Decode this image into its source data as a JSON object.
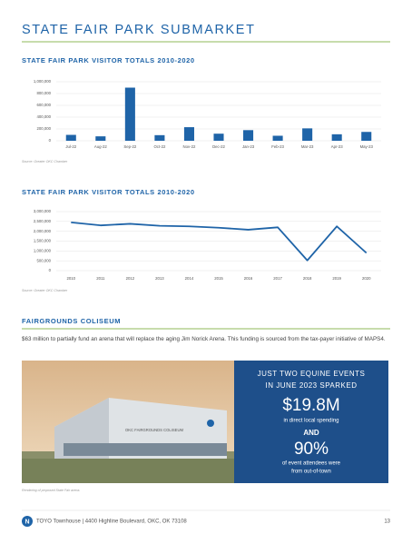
{
  "title": "STATE FAIR PARK SUBMARKET",
  "chart_data": [
    {
      "type": "bar",
      "title": "STATE FAIR PARK VISITOR TOTALS 2010-2020",
      "categories": [
        "Jul-22",
        "Aug-22",
        "Sep-22",
        "Oct-22",
        "Nov-22",
        "Dec-22",
        "Jan-23",
        "Feb-23",
        "Mar-23",
        "Apr-23",
        "May-23"
      ],
      "values": [
        100000,
        75000,
        900000,
        95000,
        230000,
        120000,
        180000,
        85000,
        210000,
        110000,
        150000
      ],
      "color": "#1f64a8",
      "ylim": [
        0,
        1000000
      ],
      "yticks": [
        0,
        {
          "value": 200000,
          "label": "200,000"
        },
        {
          "value": 400000,
          "label": "400,000"
        },
        {
          "value": 600000,
          "label": "600,000"
        },
        {
          "value": 800000,
          "label": "800,000"
        },
        {
          "value": 1000000,
          "label": "1,000,000"
        }
      ],
      "grid": true,
      "source": "Source: Greater OKC Chamber"
    },
    {
      "type": "line",
      "title": "STATE FAIR PARK VISITOR TOTALS 2010-2020",
      "x": [
        2010,
        2011,
        2012,
        2013,
        2014,
        2015,
        2016,
        2017,
        2018,
        2019,
        2020
      ],
      "values": [
        2450000,
        2300000,
        2380000,
        2280000,
        2250000,
        2180000,
        2080000,
        2200000,
        520000,
        2250000,
        900000
      ],
      "color": "#1f64a8",
      "xlim": [
        2009.5,
        2020.5
      ],
      "xticks": [
        2010,
        2011,
        2012,
        2013,
        2014,
        2015,
        2016,
        2017,
        2018,
        2019,
        2020
      ],
      "ylim": [
        0,
        3000000
      ],
      "yticks": [
        0,
        {
          "value": 500000,
          "label": "500,000"
        },
        {
          "value": 1000000,
          "label": "1,000,000"
        },
        {
          "value": 1500000,
          "label": "1,500,000"
        },
        {
          "value": 2000000,
          "label": "2,000,000"
        },
        {
          "value": 2500000,
          "label": "2,500,000"
        },
        {
          "value": 3000000,
          "label": "3,000,000"
        }
      ],
      "grid": true,
      "source": "Source: Greater OKC Chamber"
    }
  ],
  "section": {
    "title": "FAIRGROUNDS COLISEUM",
    "text": "$63 million to partially fund an arena that will replace the aging Jim Norick Arena. This funding is sourced from the tax-payer initiative of MAPS4."
  },
  "callout": {
    "headline": [
      "JUST TWO EQUINE EVENTS",
      "IN JUNE 2023 SPARKED"
    ],
    "stat1": "$19.8M",
    "stat1_text": "in direct local spending",
    "and": "AND",
    "stat2": "90%",
    "stat2_text": [
      "of event attendees were",
      "from out-of-town"
    ]
  },
  "photo_sign": "OKC FAIRGROUNDS COLISEUM",
  "image_caption": "Rendering of proposed State Fair arena.",
  "footer": {
    "logo": "N",
    "address": "TOYO Townhouse | 4400 Highline Boulevard, OKC, OK 73108",
    "page": "13"
  }
}
